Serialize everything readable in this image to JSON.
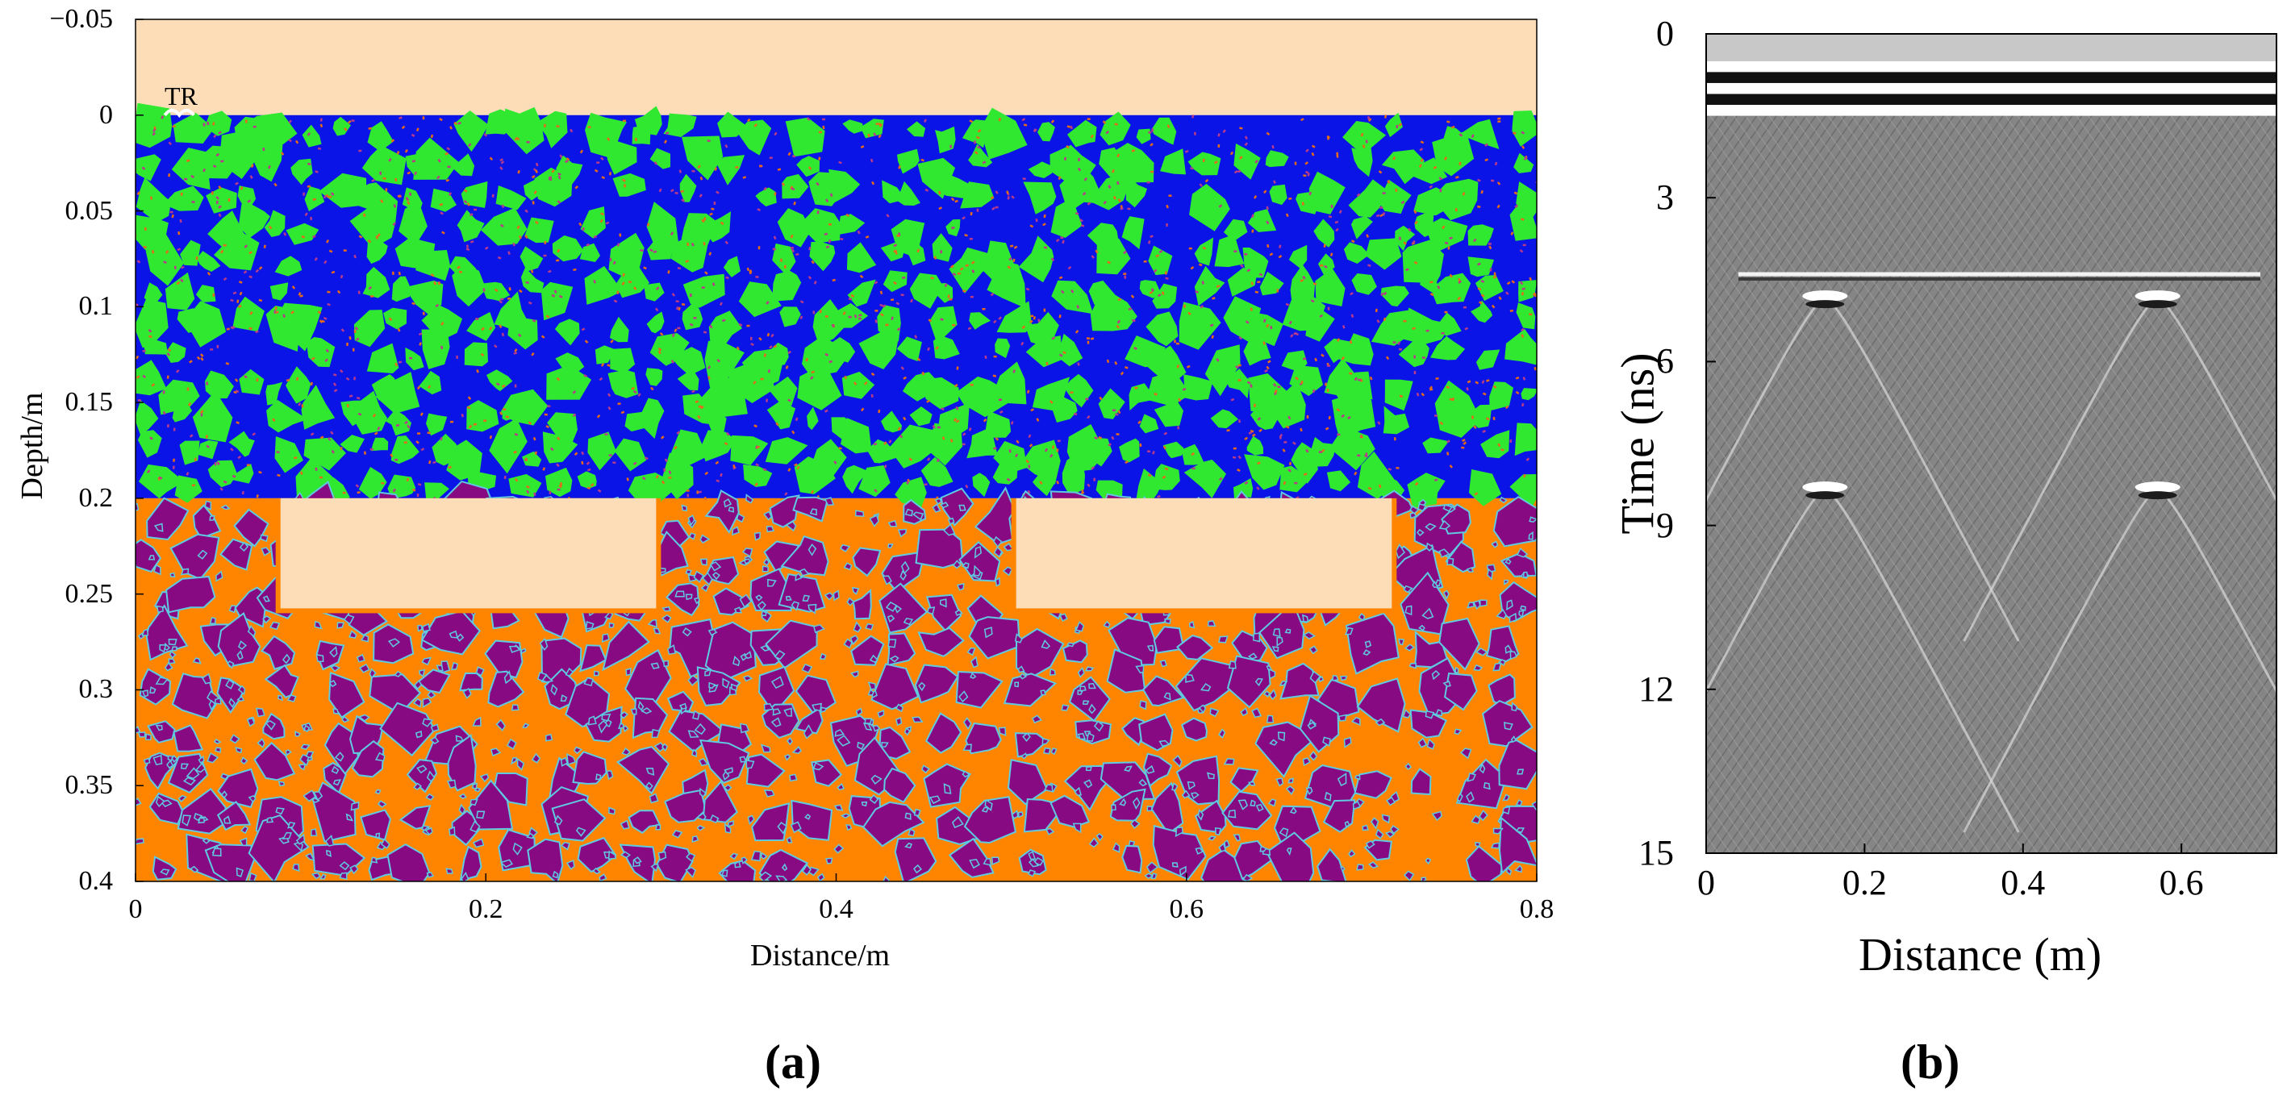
{
  "figure": {
    "panel_a_caption": "(a)",
    "panel_b_caption": "(b)"
  },
  "chart_data": [
    {
      "type": "heatmap",
      "panel": "(a)",
      "title": "",
      "xlabel": "Distance/m",
      "ylabel": "Depth/m",
      "xlim": [
        0,
        0.8
      ],
      "ylim": [
        -0.05,
        0.4
      ],
      "y_reversed": true,
      "x_ticks": [
        "0",
        "0.2",
        "0.4",
        "0.6",
        "0.8"
      ],
      "y_ticks": [
        "−0.05",
        "0",
        "0.05",
        "0.1",
        "0.15",
        "0.2",
        "0.25",
        "0.3",
        "0.35",
        "0.4"
      ],
      "x_tick_values": [
        0,
        0.2,
        0.4,
        0.6,
        0.8
      ],
      "y_tick_values": [
        -0.05,
        0,
        0.05,
        0.1,
        0.15,
        0.2,
        0.25,
        0.3,
        0.35,
        0.4
      ],
      "annotation": "TR",
      "annotation_x": 0.025,
      "annotation_y": 0,
      "layers": [
        {
          "label": "air",
          "depth_range": [
            -0.05,
            0
          ],
          "color": "#FDDDB8"
        },
        {
          "label": "upper concrete",
          "depth_range": [
            0,
            0.2
          ],
          "matrix_color": "#0A14E6",
          "aggregate_color": "#30E830"
        },
        {
          "label": "lower concrete",
          "depth_range": [
            0.2,
            0.4
          ],
          "matrix_color": "#FF8400",
          "aggregate_color": "#870A83",
          "aggregate_edge_color": "#5FCAE0"
        }
      ],
      "voids": [
        {
          "x_range": [
            0.08,
            0.3
          ],
          "depth_range": [
            0.2,
            0.26
          ],
          "color": "#FDDDB8"
        },
        {
          "x_range": [
            0.5,
            0.72
          ],
          "depth_range": [
            0.2,
            0.26
          ],
          "color": "#FDDDB8"
        }
      ]
    },
    {
      "type": "heatmap",
      "panel": "(b)",
      "title": "",
      "xlabel": "Distance (m)",
      "ylabel": "Time (ns)",
      "xlim": [
        0,
        0.72
      ],
      "ylim": [
        0,
        15
      ],
      "y_reversed": true,
      "x_ticks": [
        "0",
        "0.2",
        "0.4",
        "0.6"
      ],
      "y_ticks": [
        "0",
        "3",
        "6",
        "9",
        "12",
        "15"
      ],
      "x_tick_values": [
        0,
        0.2,
        0.4,
        0.6
      ],
      "y_tick_values": [
        0,
        3,
        6,
        9,
        12,
        15
      ],
      "colormap": "gray",
      "direct_wave_time_ns": [
        0.5,
        1.5
      ],
      "interface_reflection_time_ns": 4.4,
      "hyperbola_apexes": [
        {
          "x": 0.15,
          "t_ns": 4.8
        },
        {
          "x": 0.57,
          "t_ns": 4.8
        },
        {
          "x": 0.15,
          "t_ns": 8.3
        },
        {
          "x": 0.57,
          "t_ns": 8.3
        }
      ]
    }
  ]
}
